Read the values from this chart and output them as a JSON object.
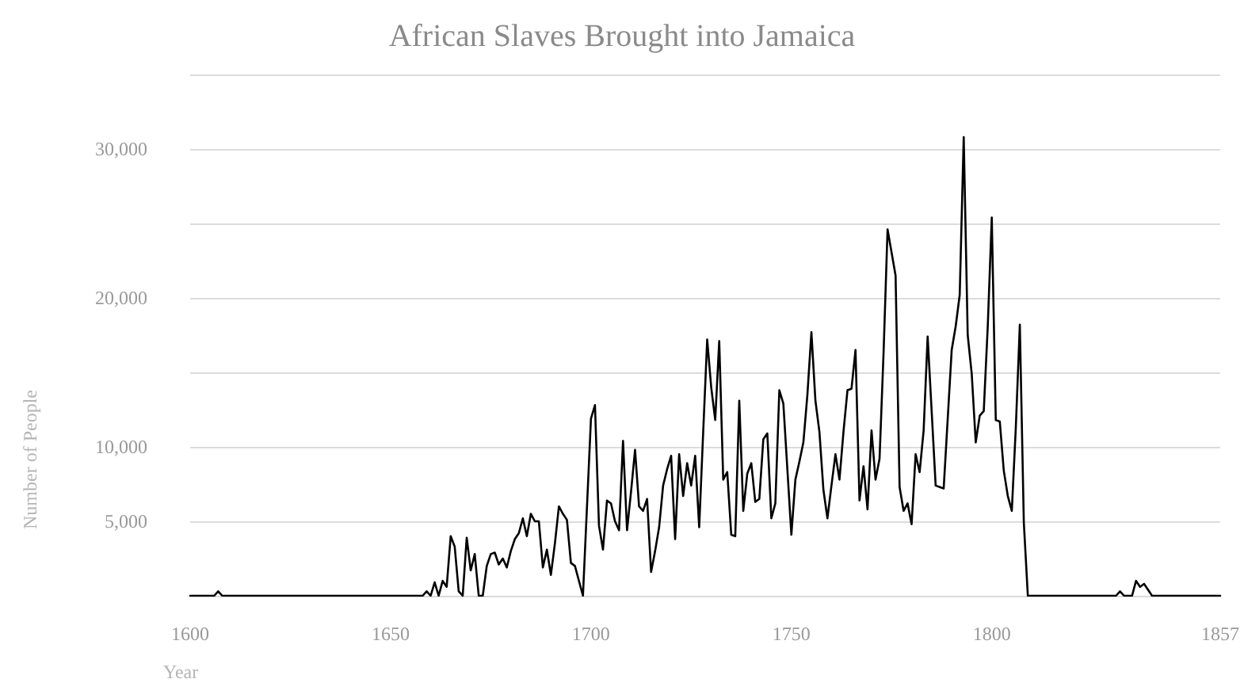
{
  "chart_data": {
    "type": "line",
    "title": "African Slaves Brought into Jamaica",
    "xlabel": "Year",
    "ylabel": "Number of People",
    "xlim": [
      1600,
      1857
    ],
    "xticks": [
      1600,
      1650,
      1700,
      1750,
      1800,
      1857
    ],
    "ylim": [
      0,
      35000
    ],
    "yticks": [
      {
        "value": 0,
        "label": null
      },
      {
        "value": 5000,
        "label": "5,000"
      },
      {
        "value": 10000,
        "label": "10,000"
      },
      {
        "value": 15000,
        "label": null
      },
      {
        "value": 20000,
        "label": "20,000"
      },
      {
        "value": 25000,
        "label": null
      },
      {
        "value": 30000,
        "label": "30,000"
      },
      {
        "value": 35000,
        "label": null
      }
    ],
    "grid": "y",
    "series": [
      {
        "color": "#000000",
        "x": [
          1600,
          1606,
          1607,
          1608,
          1658,
          1659,
          1660,
          1661,
          1662,
          1663,
          1664,
          1665,
          1666,
          1667,
          1668,
          1669,
          1670,
          1671,
          1672,
          1673,
          1674,
          1675,
          1676,
          1677,
          1678,
          1679,
          1680,
          1681,
          1682,
          1683,
          1684,
          1685,
          1686,
          1687,
          1688,
          1689,
          1690,
          1691,
          1692,
          1693,
          1694,
          1695,
          1696,
          1698,
          1700,
          1701,
          1702,
          1703,
          1704,
          1705,
          1706,
          1707,
          1708,
          1709,
          1710,
          1711,
          1712,
          1713,
          1714,
          1715,
          1716,
          1717,
          1718,
          1719,
          1720,
          1721,
          1722,
          1723,
          1724,
          1725,
          1726,
          1727,
          1728,
          1729,
          1730,
          1731,
          1732,
          1733,
          1734,
          1735,
          1736,
          1737,
          1738,
          1739,
          1740,
          1741,
          1742,
          1743,
          1744,
          1745,
          1746,
          1747,
          1748,
          1750,
          1751,
          1752,
          1753,
          1754,
          1755,
          1756,
          1757,
          1758,
          1759,
          1760,
          1761,
          1762,
          1763,
          1764,
          1765,
          1766,
          1767,
          1768,
          1769,
          1770,
          1771,
          1772,
          1773,
          1774,
          1776,
          1777,
          1778,
          1779,
          1780,
          1781,
          1782,
          1783,
          1784,
          1786,
          1787,
          1788,
          1790,
          1791,
          1792,
          1793,
          1794,
          1795,
          1796,
          1797,
          1798,
          1799,
          1800,
          1801,
          1802,
          1803,
          1804,
          1805,
          1806,
          1807,
          1808,
          1809,
          1831,
          1832,
          1833,
          1835,
          1836,
          1837,
          1838,
          1840,
          1857
        ],
        "values": [
          0,
          0,
          300,
          0,
          0,
          300,
          0,
          900,
          0,
          1000,
          600,
          4000,
          3300,
          300,
          0,
          3900,
          1700,
          2800,
          0,
          0,
          2000,
          2800,
          2900,
          2100,
          2500,
          1900,
          3000,
          3800,
          4200,
          5200,
          4000,
          5500,
          5000,
          5000,
          1900,
          3100,
          1400,
          3500,
          6000,
          5500,
          5100,
          2200,
          2000,
          0,
          11900,
          12800,
          4700,
          3100,
          6400,
          6200,
          5000,
          4400,
          10400,
          4400,
          7000,
          9800,
          6000,
          5700,
          6500,
          1600,
          3000,
          4600,
          7400,
          8500,
          9400,
          3800,
          9500,
          6700,
          8900,
          7400,
          9400,
          4600,
          11000,
          17200,
          14000,
          11800,
          17100,
          7800,
          8300,
          4100,
          4000,
          13100,
          5700,
          8200,
          8900,
          6300,
          6500,
          10500,
          10900,
          5200,
          6200,
          13800,
          12900,
          4100,
          7800,
          9000,
          10300,
          13500,
          17700,
          13100,
          11000,
          7100,
          5200,
          7400,
          9500,
          7800,
          11000,
          13800,
          13900,
          16500,
          6400,
          8700,
          5800,
          11100,
          7800,
          9200,
          16300,
          24600,
          21500,
          7300,
          5700,
          6200,
          4800,
          9500,
          8300,
          11100,
          17400,
          7400,
          7300,
          7200,
          16500,
          18100,
          20200,
          30800,
          17500,
          14900,
          10300,
          12100,
          12400,
          18100,
          25400,
          11800,
          11700,
          8400,
          6700,
          5700,
          11300,
          18200,
          4900,
          0,
          0,
          300,
          0,
          0,
          1000,
          600,
          800,
          0,
          0
        ]
      }
    ]
  }
}
